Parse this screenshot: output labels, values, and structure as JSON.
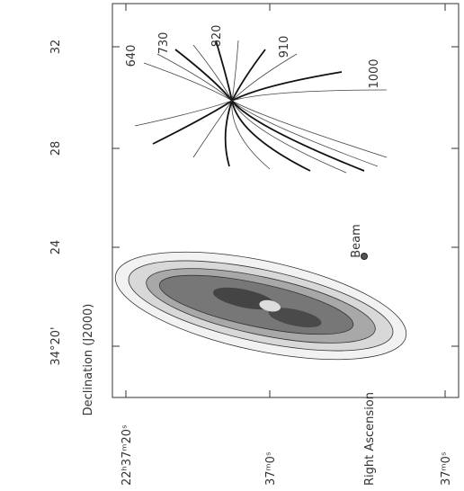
{
  "axes": {
    "y_ticks": [
      "32",
      "28",
      "24",
      "34°20'"
    ],
    "y_title": "Declination (J2000)",
    "x_ticks": [
      "22ʰ37ᵐ20ˢ",
      "37ᵐ0ˢ",
      "37ᵐ0ˢ"
    ],
    "x_title": "Right Ascension"
  },
  "velocity_labels": [
    "640",
    "730",
    "820",
    "910",
    "1000"
  ],
  "beam_label": "Beam"
}
